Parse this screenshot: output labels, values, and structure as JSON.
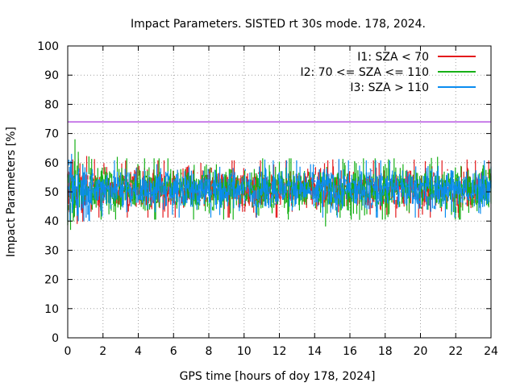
{
  "chart_data": {
    "type": "line",
    "title": "Impact Parameters. SISTED rt 30s mode. 178, 2024.",
    "xlabel": "GPS time [hours of doy 178, 2024]",
    "ylabel": "Impact Parameters [%]",
    "xlim": [
      0,
      24
    ],
    "ylim": [
      0,
      100
    ],
    "xticks": [
      0,
      2,
      4,
      6,
      8,
      10,
      12,
      14,
      16,
      18,
      20,
      22,
      24
    ],
    "yticks": [
      0,
      10,
      20,
      30,
      40,
      50,
      60,
      70,
      80,
      90,
      100
    ],
    "grid": true,
    "legend_position": "top-right",
    "series": [
      {
        "name": "I1: SZA < 70",
        "color": "#e41a1c",
        "mean": 51,
        "typical_range": [
          44,
          58
        ],
        "extremes": [
          39,
          65
        ]
      },
      {
        "name": "I2: 70 <= SZA <= 110",
        "color": "#16b016",
        "mean": 51,
        "typical_range": [
          44,
          59
        ],
        "extremes": [
          37,
          68
        ]
      },
      {
        "name": "I3: SZA > 110",
        "color": "#0a8cf0",
        "mean": 51,
        "typical_range": [
          44,
          58
        ],
        "extremes": [
          40,
          63
        ]
      }
    ],
    "reference_line": {
      "y": 74,
      "color": "#9400d3"
    }
  }
}
